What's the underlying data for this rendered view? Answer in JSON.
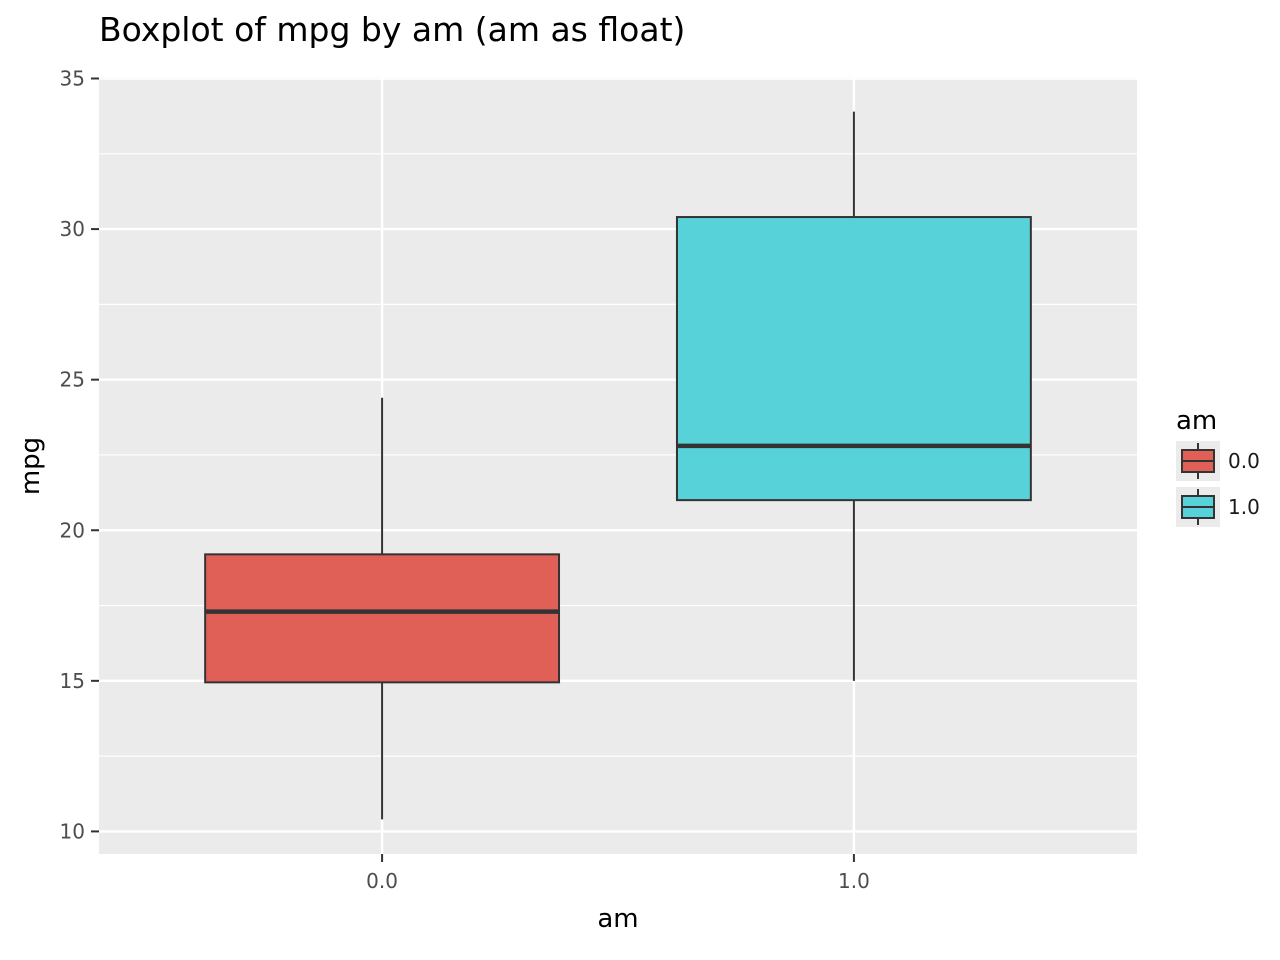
{
  "chart_data": {
    "type": "boxplot",
    "title": "Boxplot of mpg by am (am as float)",
    "xlabel": "am",
    "ylabel": "mpg",
    "categories": [
      "0.0",
      "1.0"
    ],
    "ylim": [
      9.25,
      35.05
    ],
    "yticks": [
      "10",
      "15",
      "20",
      "25",
      "30",
      "35"
    ],
    "series": [
      {
        "name": "0.0",
        "color": "#e06058",
        "whisker_low": 10.4,
        "q1": 14.95,
        "median": 17.3,
        "q3": 19.2,
        "whisker_high": 24.4
      },
      {
        "name": "1.0",
        "color": "#58d2d9",
        "whisker_low": 15.0,
        "q1": 21.0,
        "median": 22.8,
        "q3": 30.4,
        "whisker_high": 33.9
      }
    ],
    "legend": {
      "title": "am",
      "position": "right",
      "entries": [
        "0.0",
        "1.0"
      ]
    },
    "grid": true,
    "colors": {
      "panel": "#ebebeb",
      "grid": "#ffffff",
      "box_stroke": "#333333"
    }
  }
}
